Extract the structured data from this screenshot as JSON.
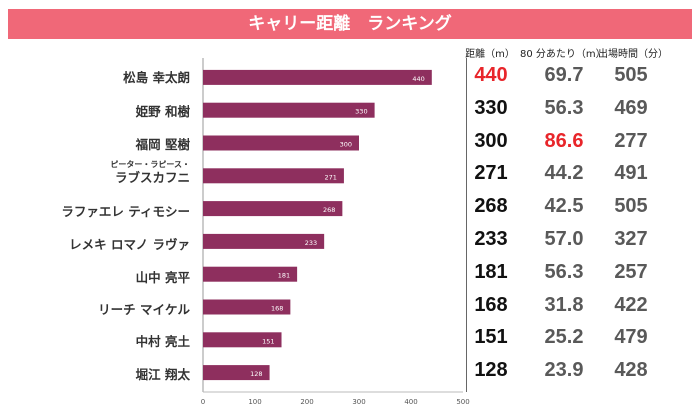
{
  "title": "キャリー距離　ランキング",
  "columns": [
    "距離（m）",
    "80 分あたり（m）",
    "出場時間（分）"
  ],
  "colors": {
    "bar": "#8e2f5e",
    "title_bg": "#f06878",
    "highlight": "#e8252a",
    "cell_dark": "#111111",
    "cell_gray": "#595959"
  },
  "chart_data": {
    "type": "bar",
    "orientation": "horizontal",
    "title": "キャリー距離　ランキング",
    "categories": [
      "松島 幸太朗",
      "姫野 和樹",
      "福岡 堅樹",
      "ピーター・ラピース・ラブスカフニ",
      "ラファエレ ティモシー",
      "レメキ ロマノ ラヴァ",
      "山中 亮平",
      "リーチ マイケル",
      "中村 亮土",
      "堀江 翔太"
    ],
    "values": [
      440,
      330,
      300,
      271,
      268,
      233,
      181,
      168,
      151,
      128
    ],
    "xlim": [
      0,
      500
    ],
    "xticks": [
      "0",
      "100",
      "200",
      "300",
      "400",
      "500"
    ],
    "grid": false,
    "legend": "none"
  },
  "players": [
    {
      "name": "松島 幸太朗",
      "distance": "440",
      "per80": "69.7",
      "minutes": "505"
    },
    {
      "name": "姫野 和樹",
      "distance": "330",
      "per80": "56.3",
      "minutes": "469"
    },
    {
      "name": "福岡 堅樹",
      "distance": "300",
      "per80": "86.6",
      "minutes": "277"
    },
    {
      "name_line1": "ピーター・ラピース・",
      "name_line2": "ラブスカフニ",
      "distance": "271",
      "per80": "44.2",
      "minutes": "491"
    },
    {
      "name": "ラファエレ ティモシー",
      "distance": "268",
      "per80": "42.5",
      "minutes": "505"
    },
    {
      "name": "レメキ ロマノ ラヴァ",
      "distance": "233",
      "per80": "57.0",
      "minutes": "327"
    },
    {
      "name": "山中 亮平",
      "distance": "181",
      "per80": "56.3",
      "minutes": "257"
    },
    {
      "name": "リーチ マイケル",
      "distance": "168",
      "per80": "31.8",
      "minutes": "422"
    },
    {
      "name": "中村 亮土",
      "distance": "151",
      "per80": "25.2",
      "minutes": "479"
    },
    {
      "name": "堀江 翔太",
      "distance": "128",
      "per80": "23.9",
      "minutes": "428"
    }
  ]
}
